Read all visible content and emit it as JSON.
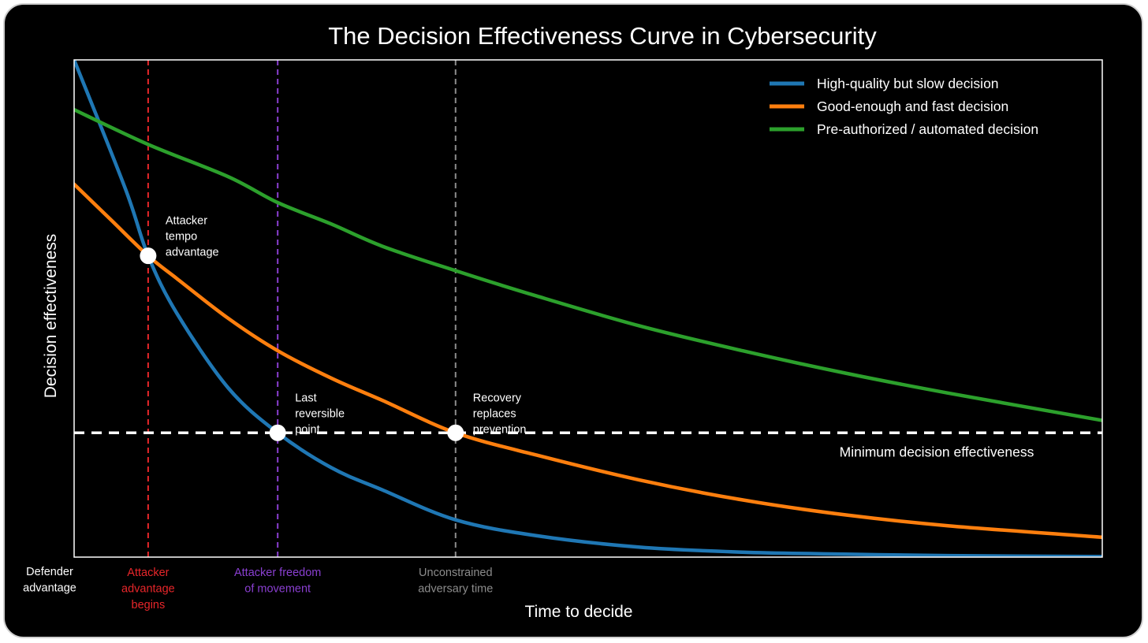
{
  "chart_data": {
    "type": "line",
    "title": "The Decision Effectiveness Curve in Cybersecurity",
    "xlabel": "Time to decide",
    "ylabel": "Decision effectiveness",
    "xlim": [
      0,
      100
    ],
    "ylim": [
      0,
      100
    ],
    "grid": false,
    "legend_position": "top-right",
    "threshold": {
      "label": "Minimum decision effectiveness",
      "value": 25,
      "color": "#ffffff"
    },
    "series": [
      {
        "name": "High-quality but slow decision",
        "color": "#1f77b4",
        "x": [
          0,
          5,
          7.2,
          10,
          15,
          19.8,
          25,
          30,
          37.1,
          45,
          55,
          65,
          75,
          85,
          100
        ],
        "values": [
          100,
          74,
          60.6,
          49,
          34,
          25,
          18,
          13.5,
          7.5,
          4.3,
          2,
          1,
          0.6,
          0.3,
          0.1
        ]
      },
      {
        "name": "Good-enough and fast decision",
        "color": "#ff7f0e",
        "x": [
          0,
          3.5,
          7.2,
          10,
          15,
          19.8,
          25,
          30,
          37.1,
          45,
          55,
          65,
          75,
          85,
          100
        ],
        "values": [
          75,
          68,
          60.6,
          56,
          48,
          41.5,
          36,
          31.5,
          25,
          20.5,
          15.5,
          11.5,
          8.5,
          6.3,
          4
        ]
      },
      {
        "name": "Pre-authorized / automated decision",
        "color": "#2ca02c",
        "x": [
          0,
          7.2,
          15,
          19.8,
          25,
          30,
          37.1,
          45,
          55,
          65,
          75,
          85,
          100
        ],
        "values": [
          90,
          83,
          76.5,
          71.3,
          67,
          62.5,
          57.6,
          52.5,
          46.5,
          41.5,
          37,
          33,
          27.5
        ]
      }
    ],
    "markers": [
      {
        "name": "vline-attacker-advantage",
        "x": 7.2,
        "color": "#e8262a",
        "label": [
          "Attacker",
          "advantage",
          "begins"
        ]
      },
      {
        "name": "vline-attacker-freedom",
        "x": 19.8,
        "color": "#8a3fd1",
        "label": [
          "Attacker freedom",
          "of movement"
        ]
      },
      {
        "name": "vline-unconstrained",
        "x": 37.1,
        "color": "#8c8c8c",
        "label": [
          "Unconstrained",
          "adversary time"
        ]
      }
    ],
    "origin_label": [
      "Defender",
      "advantage"
    ],
    "annotations": [
      {
        "name": "point-attacker-tempo",
        "x": 7.2,
        "y": 60.6,
        "lines": [
          "Attacker",
          "tempo",
          "advantage"
        ]
      },
      {
        "name": "point-last-reversible",
        "x": 19.8,
        "y": 25,
        "lines": [
          "Last",
          "reversible",
          "point"
        ]
      },
      {
        "name": "point-recovery",
        "x": 37.1,
        "y": 25,
        "lines": [
          "Recovery",
          "replaces",
          "prevention"
        ]
      }
    ]
  }
}
